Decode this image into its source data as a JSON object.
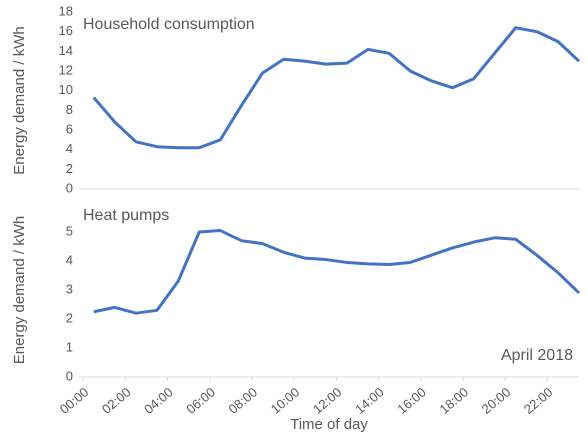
{
  "chart_data": [
    {
      "type": "line",
      "annotation": "Household consumption",
      "ylabel": "Energy demand / kWh",
      "x": [
        0.5,
        1.5,
        2.5,
        3.5,
        4.5,
        5.5,
        6.5,
        7.5,
        8.5,
        9.5,
        10.5,
        11.5,
        12.5,
        13.5,
        14.5,
        15.5,
        16.5,
        17.5,
        18.5,
        19.5,
        20.5,
        21.5,
        22.5,
        23.5
      ],
      "series": [
        {
          "name": "Household consumption",
          "color": "#4472c4",
          "values": [
            9.3,
            6.8,
            4.8,
            4.3,
            4.2,
            4.2,
            5.0,
            8.5,
            11.8,
            13.2,
            13.0,
            12.7,
            12.8,
            14.2,
            13.8,
            12.0,
            11.0,
            10.3,
            11.2,
            13.8,
            16.4,
            16.0,
            15.0,
            13.0
          ]
        }
      ],
      "xlim": [
        -0.2,
        23.5
      ],
      "ylim": [
        0,
        18
      ],
      "yticks": [
        0,
        2,
        4,
        6,
        8,
        10,
        12,
        14,
        16,
        18
      ]
    },
    {
      "type": "line",
      "annotation": "Heat pumps",
      "note": "April 2018",
      "ylabel": "Energy demand / kWh",
      "xlabel": "Time of day",
      "x": [
        0.5,
        1.5,
        2.5,
        3.5,
        4.5,
        5.5,
        6.5,
        7.5,
        8.5,
        9.5,
        10.5,
        11.5,
        12.5,
        13.5,
        14.5,
        15.5,
        16.5,
        17.5,
        18.5,
        19.5,
        20.5,
        21.5,
        22.5,
        23.5
      ],
      "series": [
        {
          "name": "Heat pumps",
          "color": "#4472c4",
          "values": [
            2.25,
            2.4,
            2.2,
            2.3,
            3.3,
            5.0,
            5.05,
            4.7,
            4.6,
            4.3,
            4.1,
            4.05,
            3.95,
            3.9,
            3.88,
            3.95,
            4.2,
            4.45,
            4.65,
            4.8,
            4.75,
            4.2,
            3.6,
            2.9
          ]
        }
      ],
      "xlim": [
        -0.2,
        23.5
      ],
      "ylim": [
        0,
        6
      ],
      "yticks": [
        0,
        1,
        2,
        3,
        4,
        5
      ],
      "xticks": [
        {
          "value": 0,
          "label": "00:00"
        },
        {
          "value": 2,
          "label": "02:00"
        },
        {
          "value": 4,
          "label": "04:00"
        },
        {
          "value": 6,
          "label": "06:00"
        },
        {
          "value": 8,
          "label": "08:00"
        },
        {
          "value": 10,
          "label": "10:00"
        },
        {
          "value": 12,
          "label": "12:00"
        },
        {
          "value": 14,
          "label": "14:00"
        },
        {
          "value": 16,
          "label": "16:00"
        },
        {
          "value": 18,
          "label": "18:00"
        },
        {
          "value": 20,
          "label": "20:00"
        },
        {
          "value": 22,
          "label": "22:00"
        }
      ]
    }
  ]
}
